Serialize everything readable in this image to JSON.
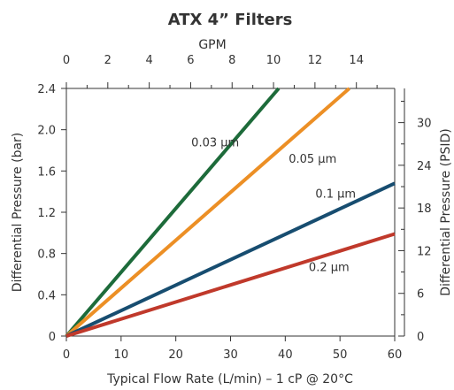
{
  "chart_data": {
    "type": "line",
    "title": "ATX 4” Filters",
    "xlabel": "Typical Flow Rate (L/min) – 1 cP @ 20°C",
    "ylabel": "Differential Pressure (bar)",
    "x2label": "GPM",
    "y2label": "Differential Pressure (PSID)",
    "xlim": [
      0,
      60
    ],
    "ylim": [
      0,
      2.4
    ],
    "x2lim": [
      0,
      15.85
    ],
    "y2lim": [
      0,
      34.8
    ],
    "xticks": [
      "0",
      "10",
      "20",
      "30",
      "40",
      "50",
      "60"
    ],
    "yticks": [
      "0",
      "0.4",
      "0.8",
      "1.2",
      "1.6",
      "2.0",
      "2.4"
    ],
    "x2ticks": [
      "0",
      "2",
      "4",
      "6",
      "8",
      "10",
      "12",
      "14"
    ],
    "y2ticks": [
      "0",
      "6",
      "12",
      "18",
      "24",
      "30"
    ],
    "grid": false,
    "series": [
      {
        "name": "0.03 µm",
        "color": "#1d6b3a",
        "x": [
          0,
          38.8
        ],
        "y": [
          0,
          2.4
        ]
      },
      {
        "name": "0.05 µm",
        "color": "#ec8f25",
        "x": [
          0,
          51.7
        ],
        "y": [
          0,
          2.4
        ]
      },
      {
        "name": "0.1 µm",
        "color": "#174d70",
        "x": [
          0,
          60
        ],
        "y": [
          0,
          1.48
        ]
      },
      {
        "name": "0.2 µm",
        "color": "#c0392b",
        "x": [
          0,
          60
        ],
        "y": [
          0,
          0.99
        ]
      }
    ]
  }
}
